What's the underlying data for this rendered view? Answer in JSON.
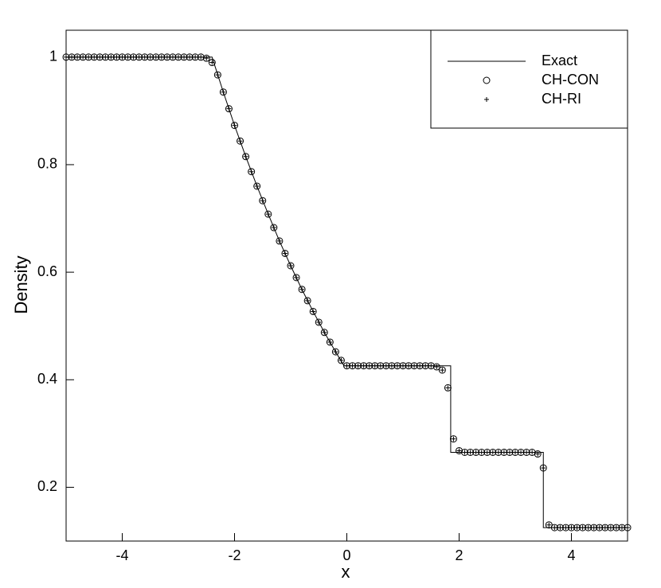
{
  "chart_data": {
    "type": "line-scatter",
    "xlabel": "x",
    "ylabel": "Density",
    "xlim": [
      -5,
      5
    ],
    "ylim": [
      0.1,
      1.05
    ],
    "xticks": [
      -4,
      -2,
      0,
      2,
      4
    ],
    "yticks": [
      0.2,
      0.4,
      0.6,
      0.8,
      1
    ],
    "legend": "upper right",
    "x": [
      -5.0,
      -4.9,
      -4.8,
      -4.7,
      -4.6,
      -4.5,
      -4.4,
      -4.3,
      -4.2,
      -4.1,
      -4.0,
      -3.9,
      -3.8,
      -3.7,
      -3.6,
      -3.5,
      -3.4,
      -3.3,
      -3.2,
      -3.1,
      -3.0,
      -2.9,
      -2.8,
      -2.7,
      -2.6,
      -2.5,
      -2.4,
      -2.3,
      -2.2,
      -2.1,
      -2.0,
      -1.9,
      -1.8,
      -1.7,
      -1.6,
      -1.5,
      -1.4,
      -1.3,
      -1.2,
      -1.1,
      -1.0,
      -0.9,
      -0.8,
      -0.7,
      -0.6,
      -0.5,
      -0.4,
      -0.3,
      -0.2,
      -0.1,
      0.0,
      0.1,
      0.2,
      0.3,
      0.4,
      0.5,
      0.6,
      0.7,
      0.8,
      0.9,
      1.0,
      1.1,
      1.2,
      1.3,
      1.4,
      1.5,
      1.6,
      1.7,
      1.8,
      1.9,
      2.0,
      2.1,
      2.2,
      2.3,
      2.4,
      2.5,
      2.6,
      2.7,
      2.8,
      2.9,
      3.0,
      3.1,
      3.2,
      3.3,
      3.4,
      3.5,
      3.6,
      3.7,
      3.8,
      3.9,
      4.0,
      4.1,
      4.2,
      4.3,
      4.4,
      4.5,
      4.6,
      4.7,
      4.8,
      4.9,
      5.0
    ],
    "series": [
      {
        "name": "Exact",
        "style": "line",
        "color": "#000000",
        "x": [
          -5,
          -2.4,
          -2.2,
          -2.0,
          -1.8,
          -1.6,
          -1.4,
          -1.2,
          -1.0,
          -0.8,
          -0.6,
          -0.4,
          -0.2,
          -0.05,
          1.85,
          1.85,
          3.5,
          3.5,
          5
        ],
        "values": [
          1,
          1,
          0.935,
          0.873,
          0.815,
          0.76,
          0.708,
          0.658,
          0.612,
          0.568,
          0.527,
          0.488,
          0.452,
          0.426,
          0.426,
          0.265,
          0.265,
          0.125,
          0.125
        ]
      },
      {
        "name": "CH-CON",
        "style": "circle",
        "color": "#000000",
        "values": [
          1,
          1,
          1,
          1,
          1,
          1,
          1,
          1,
          1,
          1,
          1,
          1,
          1,
          1,
          1,
          1,
          1,
          1,
          1,
          1,
          1,
          1,
          1,
          1,
          1,
          0.998,
          0.99,
          0.967,
          0.935,
          0.904,
          0.873,
          0.844,
          0.815,
          0.787,
          0.76,
          0.733,
          0.708,
          0.683,
          0.658,
          0.635,
          0.612,
          0.59,
          0.568,
          0.547,
          0.527,
          0.507,
          0.488,
          0.47,
          0.452,
          0.436,
          0.426,
          0.426,
          0.426,
          0.426,
          0.426,
          0.426,
          0.426,
          0.426,
          0.426,
          0.426,
          0.426,
          0.426,
          0.426,
          0.426,
          0.426,
          0.426,
          0.424,
          0.418,
          0.385,
          0.29,
          0.268,
          0.265,
          0.265,
          0.265,
          0.265,
          0.265,
          0.265,
          0.265,
          0.265,
          0.265,
          0.265,
          0.265,
          0.265,
          0.265,
          0.262,
          0.236,
          0.13,
          0.125,
          0.125,
          0.125,
          0.125,
          0.125,
          0.125,
          0.125,
          0.125,
          0.125,
          0.125,
          0.125,
          0.125,
          0.125,
          0.125
        ]
      },
      {
        "name": "CH-RI",
        "style": "plus",
        "color": "#000000",
        "values": [
          1,
          1,
          1,
          1,
          1,
          1,
          1,
          1,
          1,
          1,
          1,
          1,
          1,
          1,
          1,
          1,
          1,
          1,
          1,
          1,
          1,
          1,
          1,
          1,
          1,
          0.998,
          0.99,
          0.967,
          0.935,
          0.904,
          0.873,
          0.844,
          0.815,
          0.787,
          0.76,
          0.733,
          0.708,
          0.683,
          0.658,
          0.635,
          0.612,
          0.59,
          0.568,
          0.547,
          0.527,
          0.507,
          0.488,
          0.47,
          0.452,
          0.436,
          0.426,
          0.426,
          0.426,
          0.426,
          0.426,
          0.426,
          0.426,
          0.426,
          0.426,
          0.426,
          0.426,
          0.426,
          0.426,
          0.426,
          0.426,
          0.426,
          0.424,
          0.418,
          0.385,
          0.29,
          0.268,
          0.265,
          0.265,
          0.265,
          0.265,
          0.265,
          0.265,
          0.265,
          0.265,
          0.265,
          0.265,
          0.265,
          0.265,
          0.265,
          0.262,
          0.236,
          0.13,
          0.125,
          0.125,
          0.125,
          0.125,
          0.125,
          0.125,
          0.125,
          0.125,
          0.125,
          0.125,
          0.125,
          0.125,
          0.125,
          0.125
        ]
      }
    ]
  }
}
